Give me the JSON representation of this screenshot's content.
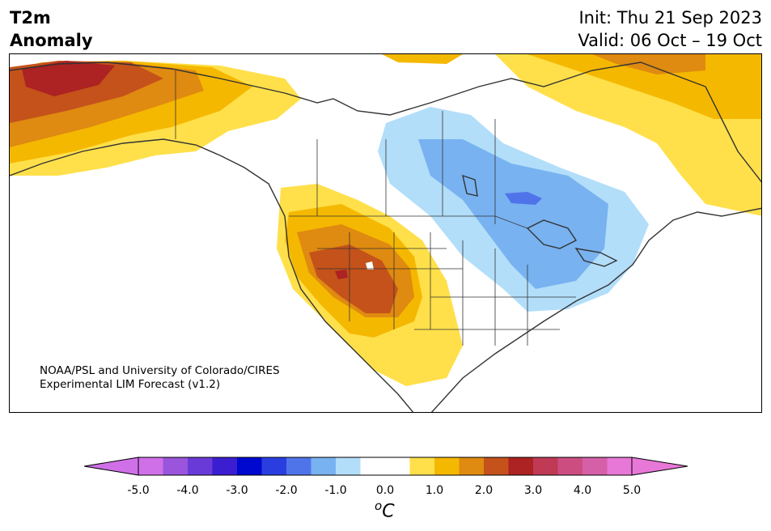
{
  "title": {
    "left_line1": "T2m",
    "left_line2": "Anomaly",
    "init": "Init: Thu 21 Sep 2023",
    "valid": "Valid: 06 Oct – 19 Oct"
  },
  "credit": {
    "line1": "NOAA/PSL and University of Colorado/CIRES",
    "line2": "Experimental LIM Forecast (v1.2)"
  },
  "map": {
    "region": "North America",
    "variable": "2-m temperature anomaly",
    "features": [
      "warm anomaly over Alaska and Yukon",
      "warm anomaly over US Southwest and Great Basin",
      "cold anomaly over Canadian Prairies, Great Lakes and Ohio Valley",
      "warm anomaly over northeastern Canada and Labrador"
    ]
  },
  "colorbar": {
    "unit_base": "C",
    "unit_super": "o",
    "ticks": [
      "-5.0",
      "-4.0",
      "-3.0",
      "-2.0",
      "-1.0",
      "0.0",
      "1.0",
      "2.0",
      "3.0",
      "4.0",
      "5.0"
    ],
    "colors": [
      "#d070e8",
      "#9a55dc",
      "#6a3ad8",
      "#3a1ed0",
      "#0008d0",
      "#2a3ee0",
      "#4f74ea",
      "#78b2f0",
      "#b2defa",
      "#ffffff",
      "#ffffff",
      "#ffe04a",
      "#f5b800",
      "#df8a10",
      "#c4521a",
      "#ad2222",
      "#c03a55",
      "#cc4e80",
      "#d560a8",
      "#e878d8"
    ]
  }
}
